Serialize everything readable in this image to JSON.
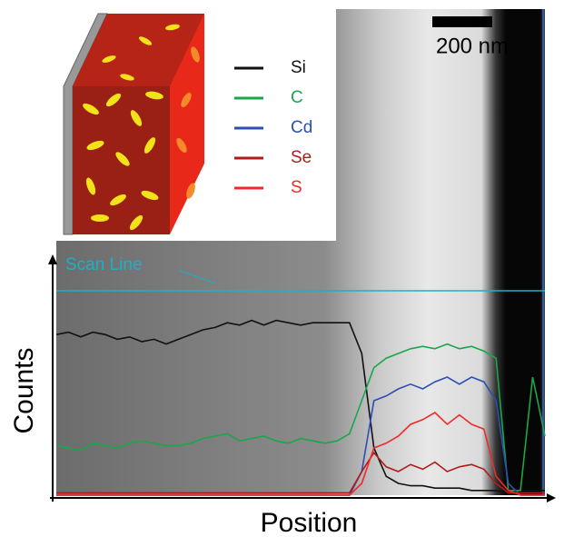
{
  "chart_data": {
    "type": "line",
    "x_label": "Position",
    "y_label": "Counts",
    "annotations": {
      "scale_bar": "200 nm",
      "scan_line": "Scan Line"
    },
    "x": [
      0,
      2.5,
      5,
      7.5,
      10,
      12.5,
      15,
      17.5,
      20,
      22.5,
      25,
      27.5,
      30,
      32.5,
      35,
      37.5,
      40,
      42.5,
      45,
      47.5,
      50,
      52.5,
      55,
      57.5,
      60,
      62.5,
      65,
      67.5,
      70,
      72.5,
      75,
      77.5,
      80,
      82.5,
      85,
      87.5,
      90,
      92.5,
      95,
      97.5,
      100
    ],
    "xlim": [
      0,
      100
    ],
    "ylim": [
      0,
      100
    ],
    "legend": "top-center",
    "series": [
      {
        "name": "Si",
        "color": "#111111",
        "values": [
          68,
          69,
          67,
          69,
          68,
          66,
          67,
          65,
          66,
          64,
          66,
          68,
          70,
          71,
          73,
          72,
          74,
          72,
          74,
          73,
          72,
          73,
          73,
          73,
          73,
          60,
          20,
          8,
          5,
          4,
          4,
          3,
          3,
          3,
          2,
          2,
          2,
          1,
          2,
          2,
          2
        ]
      },
      {
        "name": "C",
        "color": "#1aa64a",
        "values": [
          21,
          20,
          19,
          22,
          21,
          20,
          22,
          23,
          22,
          21,
          21,
          22,
          24,
          25,
          26,
          23,
          24,
          25,
          23,
          22,
          24,
          23,
          22,
          23,
          26,
          40,
          54,
          58,
          60,
          62,
          63,
          62,
          64,
          62,
          63,
          61,
          58,
          2,
          2,
          50,
          25
        ]
      },
      {
        "name": "Cd",
        "color": "#2b4fb3",
        "values": [
          0,
          0,
          0,
          0,
          0,
          0,
          0,
          0,
          0,
          0,
          0,
          0,
          0,
          0,
          0,
          0,
          0,
          0,
          0,
          0,
          0,
          0,
          0,
          0,
          0,
          10,
          40,
          42,
          45,
          47,
          45,
          48,
          50,
          47,
          50,
          48,
          40,
          5,
          0,
          0,
          0
        ]
      },
      {
        "name": "Se",
        "color": "#b01c1c",
        "values": [
          1,
          1,
          1,
          1,
          1,
          1,
          1,
          1,
          1,
          1,
          1,
          1,
          1,
          1,
          1,
          1,
          1,
          1,
          1,
          1,
          1,
          1,
          1,
          1,
          1,
          10,
          18,
          12,
          10,
          13,
          11,
          14,
          10,
          12,
          13,
          11,
          5,
          1,
          1,
          1,
          1
        ]
      },
      {
        "name": "S",
        "color": "#ee2a2a",
        "values": [
          0,
          0,
          0,
          0,
          0,
          0,
          0,
          0,
          0,
          0,
          0,
          0,
          0,
          0,
          0,
          0,
          0,
          0,
          0,
          0,
          0,
          0,
          0,
          0,
          0,
          5,
          20,
          22,
          25,
          30,
          32,
          35,
          30,
          34,
          30,
          28,
          8,
          2,
          0,
          0,
          0
        ]
      }
    ]
  }
}
